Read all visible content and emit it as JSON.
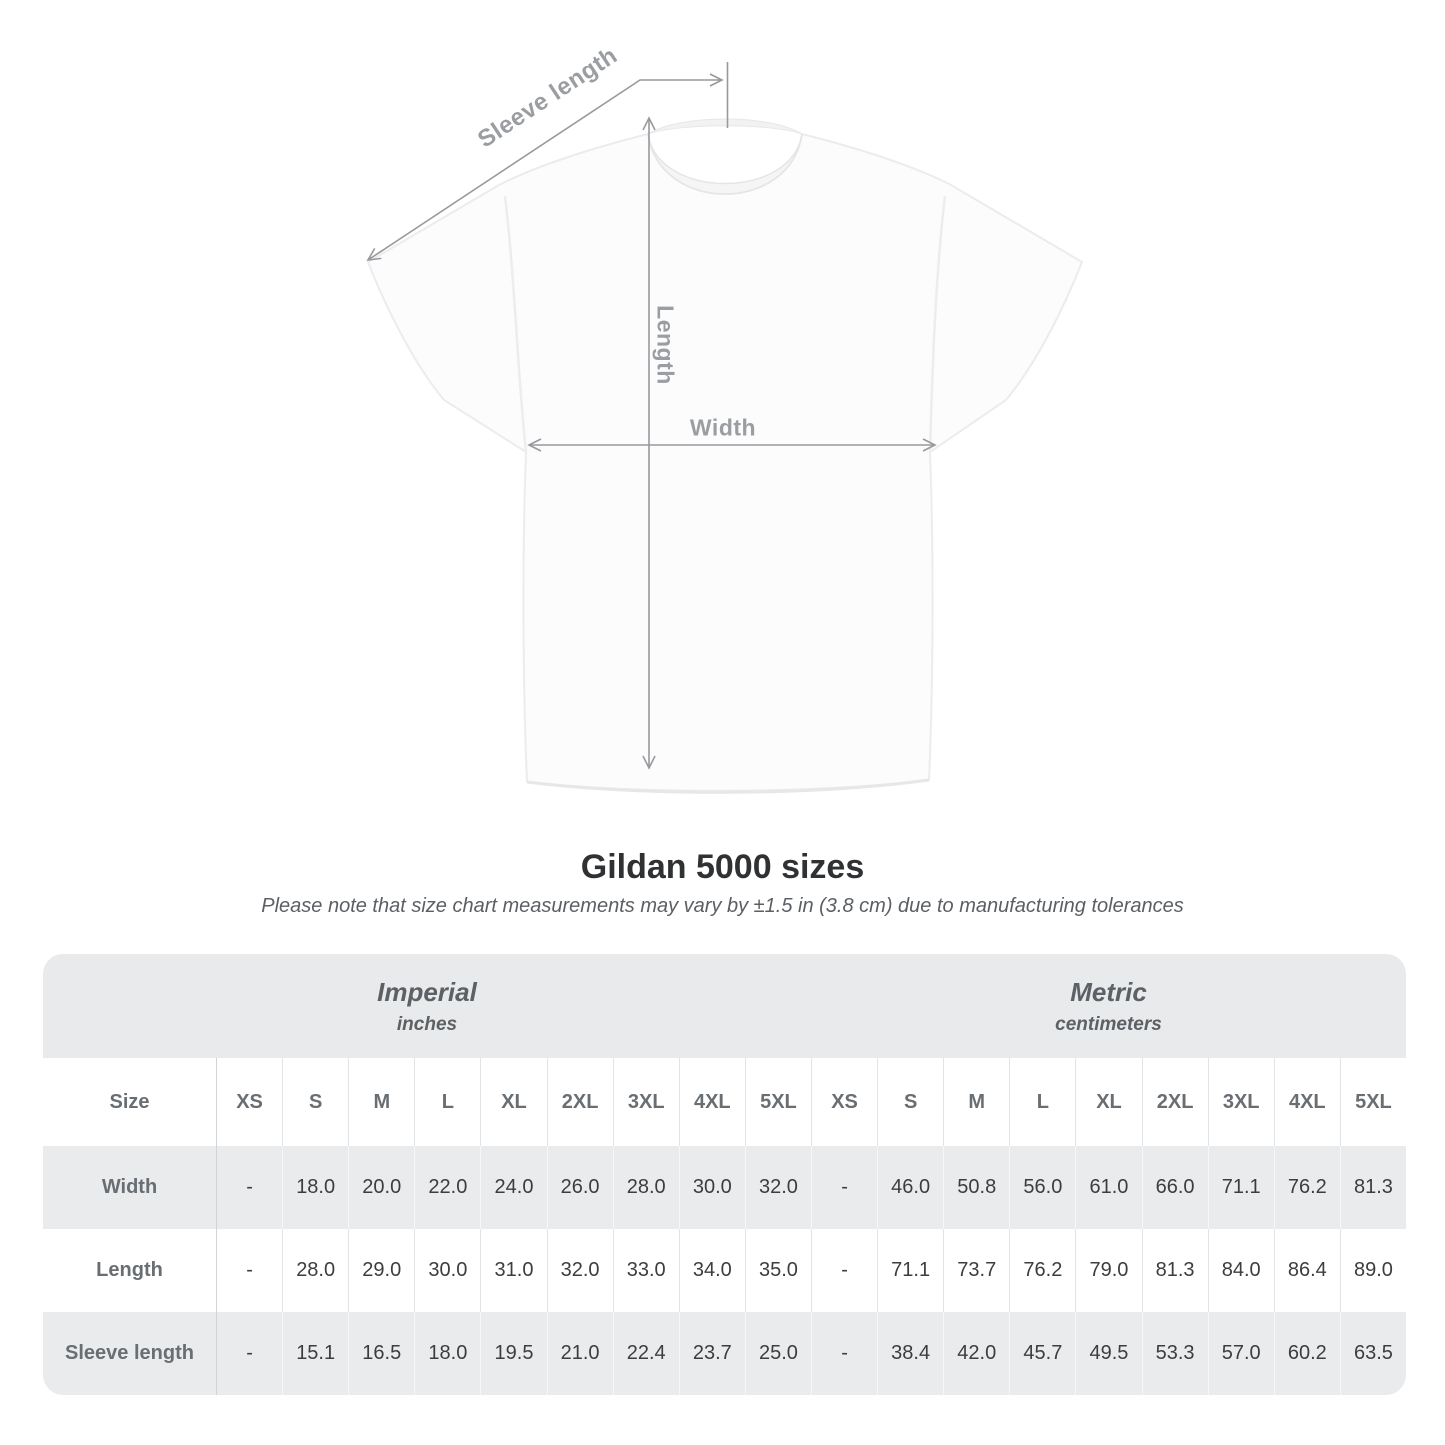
{
  "diagram": {
    "sleeve_label": "Sleeve length",
    "length_label": "Length",
    "width_label": "Width"
  },
  "title": "Gildan 5000 sizes",
  "subtitle": "Please note that size chart measurements may vary by ±1.5 in (3.8 cm) due to manufacturing tolerances",
  "table": {
    "size_label": "Size",
    "sizes": [
      "XS",
      "S",
      "M",
      "L",
      "XL",
      "2XL",
      "3XL",
      "4XL",
      "5XL"
    ],
    "sections": [
      {
        "system": "Imperial",
        "unit": "inches"
      },
      {
        "system": "Metric",
        "unit": "centimeters"
      }
    ],
    "rows": [
      {
        "label": "Width",
        "imperial": [
          "-",
          "18.0",
          "20.0",
          "22.0",
          "24.0",
          "26.0",
          "28.0",
          "30.0",
          "32.0"
        ],
        "metric": [
          "-",
          "46.0",
          "50.8",
          "56.0",
          "61.0",
          "66.0",
          "71.1",
          "76.2",
          "81.3"
        ]
      },
      {
        "label": "Length",
        "imperial": [
          "-",
          "28.0",
          "29.0",
          "30.0",
          "31.0",
          "32.0",
          "33.0",
          "34.0",
          "35.0"
        ],
        "metric": [
          "-",
          "71.1",
          "73.7",
          "76.2",
          "79.0",
          "81.3",
          "84.0",
          "86.4",
          "89.0"
        ]
      },
      {
        "label": "Sleeve length",
        "imperial": [
          "-",
          "15.1",
          "16.5",
          "18.0",
          "19.5",
          "21.0",
          "22.4",
          "23.7",
          "25.0"
        ],
        "metric": [
          "-",
          "38.4",
          "42.0",
          "45.7",
          "49.5",
          "53.3",
          "57.0",
          "60.2",
          "63.5"
        ]
      }
    ]
  },
  "colors": {
    "band_bg": "#e9eaeb",
    "row_alt_bg": "#eaebed",
    "header_text": "#696e73",
    "data_text": "#3b3d3f",
    "measure_line": "#97999d"
  },
  "chart_data": {
    "type": "table",
    "title": "Gildan 5000 sizes",
    "note": "Measurements may vary by ±1.5 in (3.8 cm)",
    "categories": [
      "XS",
      "S",
      "M",
      "L",
      "XL",
      "2XL",
      "3XL",
      "4XL",
      "5XL"
    ],
    "series": [
      {
        "name": "Width (inches)",
        "values": [
          null,
          18.0,
          20.0,
          22.0,
          24.0,
          26.0,
          28.0,
          30.0,
          32.0
        ]
      },
      {
        "name": "Length (inches)",
        "values": [
          null,
          28.0,
          29.0,
          30.0,
          31.0,
          32.0,
          33.0,
          34.0,
          35.0
        ]
      },
      {
        "name": "Sleeve length (inches)",
        "values": [
          null,
          15.1,
          16.5,
          18.0,
          19.5,
          21.0,
          22.4,
          23.7,
          25.0
        ]
      },
      {
        "name": "Width (cm)",
        "values": [
          null,
          46.0,
          50.8,
          56.0,
          61.0,
          66.0,
          71.1,
          76.2,
          81.3
        ]
      },
      {
        "name": "Length (cm)",
        "values": [
          null,
          71.1,
          73.7,
          76.2,
          79.0,
          81.3,
          84.0,
          86.4,
          89.0
        ]
      },
      {
        "name": "Sleeve length (cm)",
        "values": [
          null,
          38.4,
          42.0,
          45.7,
          49.5,
          53.3,
          57.0,
          60.2,
          63.5
        ]
      }
    ]
  }
}
